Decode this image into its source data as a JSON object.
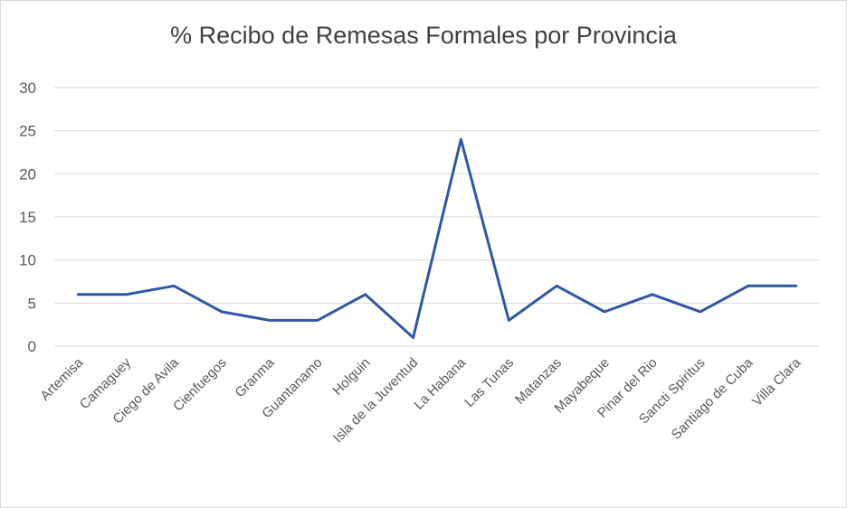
{
  "chart_data": {
    "type": "line",
    "title": "% Recibo de Remesas Formales por Provincia",
    "xlabel": "",
    "ylabel": "",
    "ylim": [
      0,
      30
    ],
    "yticks": [
      0,
      5,
      10,
      15,
      20,
      25,
      30
    ],
    "grid": true,
    "legend": "none",
    "categories": [
      "Artemisa",
      "Camaguey",
      "Ciego de Avila",
      "Cienfuegos",
      "Granma",
      "Guantanamo",
      "Holguin",
      "Isla de la Juventud",
      "La Habana",
      "Las Tunas",
      "Matanzas",
      "Mayabeque",
      "Pinar del Rio",
      "Sancti Spiritus",
      "Santiago de Cuba",
      "Villa Clara"
    ],
    "series": [
      {
        "values": [
          6,
          6,
          7,
          4,
          3,
          3,
          6,
          1,
          24,
          3,
          7,
          4,
          6,
          4,
          7,
          7
        ]
      }
    ],
    "colors": {
      "line": "#2e58a6",
      "grid": "#d9d9d9",
      "text": "#595959"
    }
  }
}
